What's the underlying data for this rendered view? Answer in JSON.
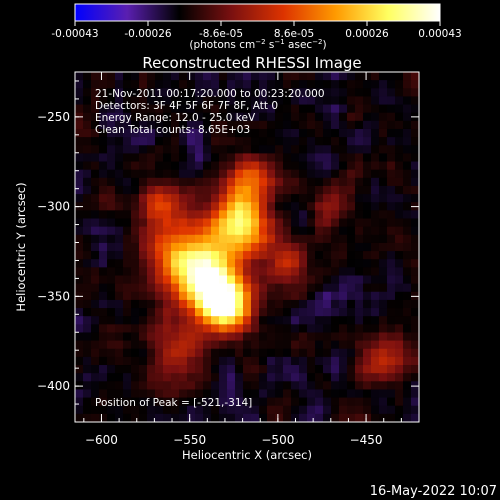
{
  "chart_data": {
    "type": "heatmap",
    "title": "Reconstructed RHESSI Image",
    "xlabel": "Heliocentric X (arcsec)",
    "ylabel": "Heliocentric Y (arcsec)",
    "xlim": [
      -615,
      -420
    ],
    "ylim": [
      -420,
      -225
    ],
    "x_ticks": [
      -600,
      -550,
      -500,
      -450
    ],
    "y_ticks": [
      -250,
      -300,
      -350,
      -400
    ],
    "colorbar": {
      "min": -0.00043,
      "max": 0.00043,
      "ticks": [
        "-0.00043",
        "-0.00026",
        "-8.6e-05",
        "8.6e-05",
        "0.00026",
        "0.00043"
      ],
      "label": "(photons cm⁻² s⁻¹ asec⁻²)",
      "colors": [
        "#0000ff",
        "#5a1fb0",
        "#000000",
        "#7a1010",
        "#dd3300",
        "#ff9a00",
        "#ffff60",
        "#ffffff"
      ]
    },
    "annotations": [
      "21-Nov-2011 00:17:20.000 to 00:23:20.000",
      "Detectors: 3F 4F 5F 6F 7F 8F, Att 0",
      "Energy Range: 12.0 - 25.0 keV",
      "Clean    Total counts: 8.65E+03"
    ],
    "peak_label": "Position of Peak = [-521,-314]",
    "peak": [
      -521,
      -314
    ],
    "sources": [
      {
        "x": -522,
        "y": -310,
        "amp": 1.0,
        "sigma": 11
      },
      {
        "x": -540,
        "y": -342,
        "amp": 1.0,
        "sigma": 13
      },
      {
        "x": -528,
        "y": -355,
        "amp": 0.9,
        "sigma": 10
      },
      {
        "x": -555,
        "y": -325,
        "amp": 0.6,
        "sigma": 14
      },
      {
        "x": -515,
        "y": -285,
        "amp": 0.55,
        "sigma": 10
      },
      {
        "x": -565,
        "y": -300,
        "amp": 0.45,
        "sigma": 9
      },
      {
        "x": -560,
        "y": -380,
        "amp": 0.4,
        "sigma": 12
      },
      {
        "x": -495,
        "y": -330,
        "amp": 0.4,
        "sigma": 10
      },
      {
        "x": -440,
        "y": -385,
        "amp": 0.4,
        "sigma": 10
      },
      {
        "x": -470,
        "y": -300,
        "amp": 0.3,
        "sigma": 8
      }
    ]
  },
  "footer": {
    "timestamp": "16-May-2022 10:07"
  }
}
